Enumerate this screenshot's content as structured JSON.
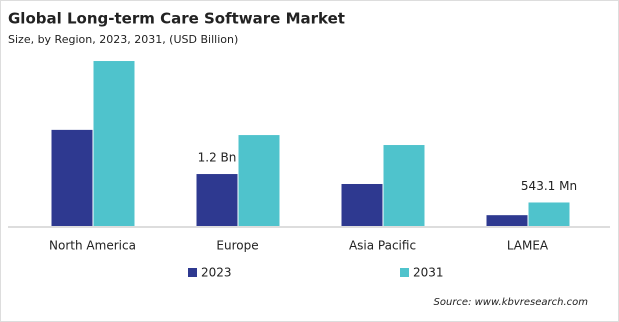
{
  "chart_data": {
    "type": "bar",
    "title": "Global Long-term Care Software Market",
    "subtitle": "Size, by Region, 2023, 2031, (USD Billion)",
    "categories": [
      "North America",
      "Europe",
      "Asia Pacific",
      "LAMEA"
    ],
    "series": [
      {
        "name": "2023",
        "color": "#2e3990",
        "values": [
          2.22,
          1.2,
          0.97,
          0.25
        ],
        "value_labels": [
          null,
          "1.2 Bn",
          null,
          null
        ]
      },
      {
        "name": "2031",
        "color": "#4fc3cc",
        "values": [
          3.81,
          2.1,
          1.87,
          0.5431
        ],
        "value_labels": [
          null,
          null,
          null,
          "543.1 Mn"
        ]
      }
    ],
    "source": "Source: www.kbvresearch.com"
  }
}
